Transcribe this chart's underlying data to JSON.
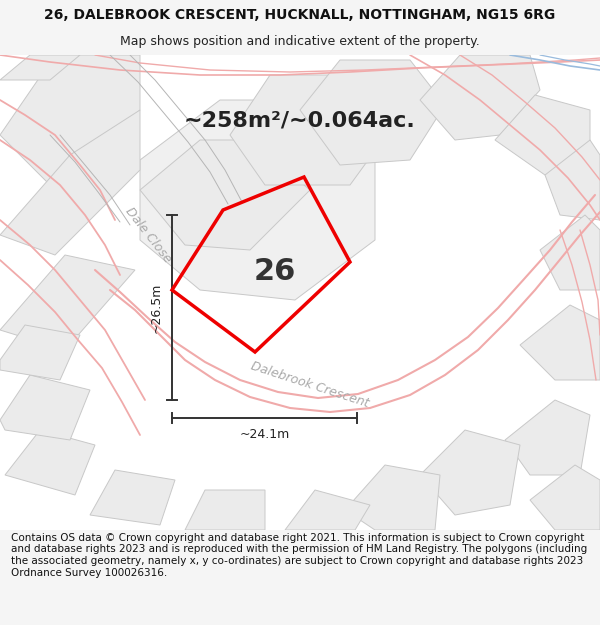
{
  "title_line1": "26, DALEBROOK CRESCENT, HUCKNALL, NOTTINGHAM, NG15 6RG",
  "title_line2": "Map shows position and indicative extent of the property.",
  "area_text": "~258m²/~0.064ac.",
  "property_number": "26",
  "dim_vertical": "~26.5m",
  "dim_horizontal": "~24.1m",
  "street_label1": "Dale Close",
  "street_label2": "Dalebrook Crescent",
  "footer_text": "Contains OS data © Crown copyright and database right 2021. This information is subject to Crown copyright and database rights 2023 and is reproduced with the permission of HM Land Registry. The polygons (including the associated geometry, namely x, y co-ordinates) are subject to Crown copyright and database rights 2023 Ordnance Survey 100026316.",
  "bg_white": "#ffffff",
  "bg_light": "#f5f5f5",
  "parcel_fill": "#ebebeb",
  "parcel_edge": "#c8c8c8",
  "property_fill": "#f0f0f0",
  "property_red": "#ee0000",
  "pink_road": "#f0aaaa",
  "blue_road": "#99bbdd",
  "dim_line_color": "#333333",
  "label_color": "#aaaaaa",
  "title_fontsize": 10,
  "subtitle_fontsize": 9,
  "area_fontsize": 16,
  "prop_num_fontsize": 22,
  "dim_fontsize": 9,
  "street_fontsize": 9,
  "footer_fontsize": 7.5,
  "map_xlim": [
    0,
    600
  ],
  "map_ylim": [
    0,
    475
  ]
}
